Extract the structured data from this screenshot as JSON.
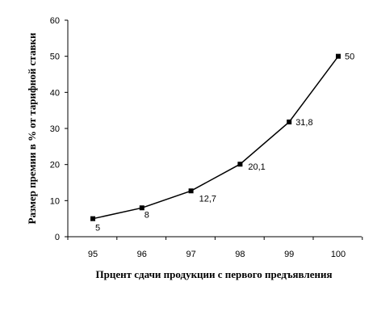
{
  "chart_data": {
    "type": "line",
    "categories": [
      "95",
      "96",
      "97",
      "98",
      "99",
      "100"
    ],
    "values": [
      5,
      8,
      12.7,
      20.1,
      31.8,
      50
    ],
    "data_labels": [
      "5",
      "8",
      "12,7",
      "20,1",
      "31,8",
      "50"
    ],
    "xlabel": "Прцент сдачи продукции с первого предъявления",
    "ylabel": "Размер премии в % от тарифной ставки",
    "ylim": [
      0,
      60
    ],
    "yticks": [
      "0",
      "10",
      "20",
      "30",
      "40",
      "50",
      "60"
    ],
    "grid": false,
    "legend": "none",
    "line_color": "#000000",
    "marker": "square"
  }
}
